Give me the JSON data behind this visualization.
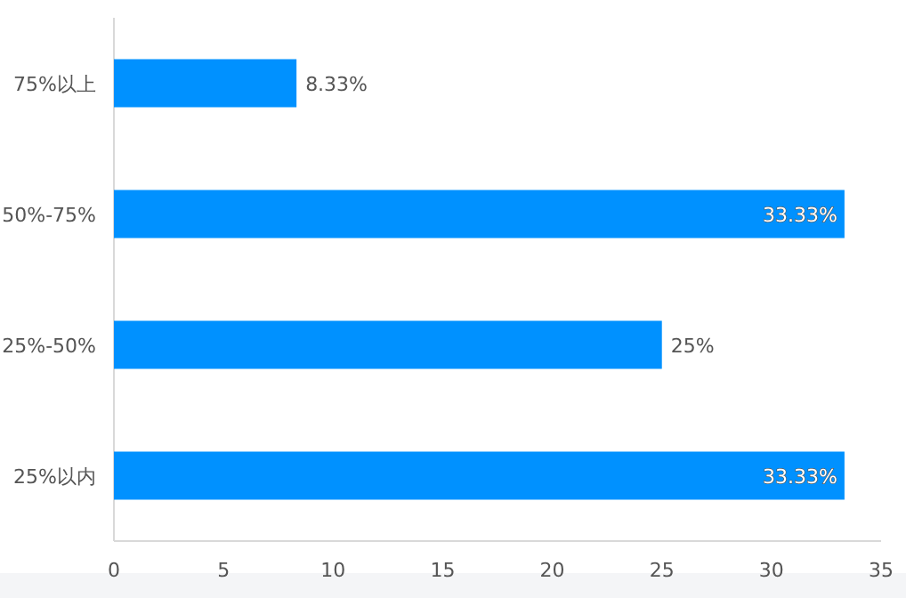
{
  "chart_data": {
    "type": "bar",
    "orientation": "horizontal",
    "categories": [
      "75%以上",
      "50%-75%",
      "25%-50%",
      "25%以内"
    ],
    "values": [
      8.33,
      33.33,
      25,
      33.33
    ],
    "value_labels": [
      "8.33%",
      "33.33%",
      "25%",
      "33.33%"
    ],
    "color": "#0091ff",
    "xlim": [
      0,
      35
    ],
    "xticks": [
      0,
      5,
      10,
      15,
      20,
      25,
      30,
      35
    ],
    "grid": false
  }
}
